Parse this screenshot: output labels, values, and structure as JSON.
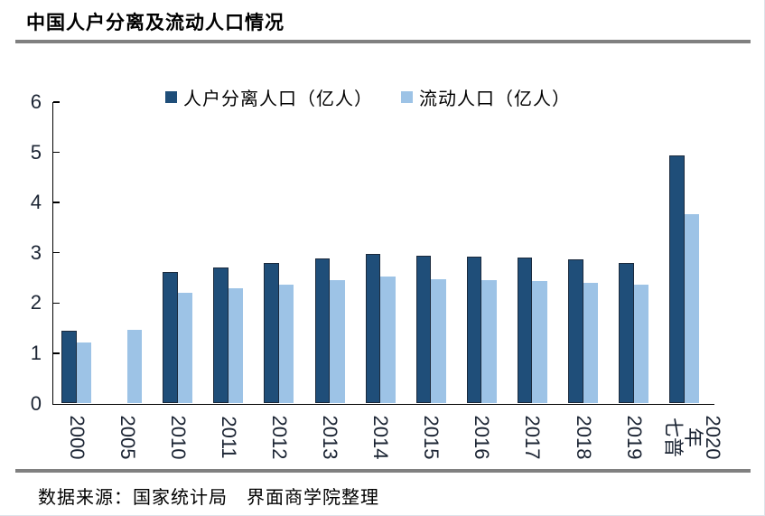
{
  "title": "中国人户分离及流动人口情况",
  "source": "数据来源：国家统计局　界面商学院整理",
  "legend": {
    "items": [
      {
        "label": "人户分离人口（亿人）",
        "color": "#1F4E79"
      },
      {
        "label": "流动人口（亿人）",
        "color": "#9DC3E6"
      }
    ]
  },
  "colors": {
    "dark_bar": "#1F4E79",
    "dark_bar_border": "#1B2A3D",
    "light_bar": "#9DC3E6",
    "axis_line": "#000000",
    "tick_label": "#1B2433",
    "divider_gray": "#808080"
  },
  "chart_data": {
    "type": "bar",
    "title": "中国人户分离及流动人口情况",
    "categories": [
      "2000",
      "2005",
      "2010",
      "2011",
      "2012",
      "2013",
      "2014",
      "2015",
      "2016",
      "2017",
      "2018",
      "2019",
      "七普2020年"
    ],
    "xtick_display": [
      "2000",
      "2005",
      "2010",
      "2011",
      "2012",
      "2013",
      "2014",
      "2015",
      "2016",
      "2017",
      "2018",
      "2019",
      "2020年\n七普"
    ],
    "series": [
      {
        "name": "人户分离人口（亿人）",
        "color": "#1F4E79",
        "values": [
          1.44,
          null,
          2.61,
          2.71,
          2.79,
          2.89,
          2.98,
          2.94,
          2.92,
          2.91,
          2.86,
          2.8,
          4.93
        ]
      },
      {
        "name": "流动人口（亿人）",
        "color": "#9DC3E6",
        "values": [
          1.21,
          1.47,
          2.21,
          2.3,
          2.36,
          2.45,
          2.53,
          2.47,
          2.45,
          2.44,
          2.41,
          2.36,
          3.76
        ]
      }
    ],
    "xlabel": "",
    "ylabel": "",
    "ylim": [
      0,
      6
    ],
    "yticks": [
      0,
      1,
      2,
      3,
      4,
      5,
      6
    ],
    "grid": false,
    "legend_position": "top"
  }
}
